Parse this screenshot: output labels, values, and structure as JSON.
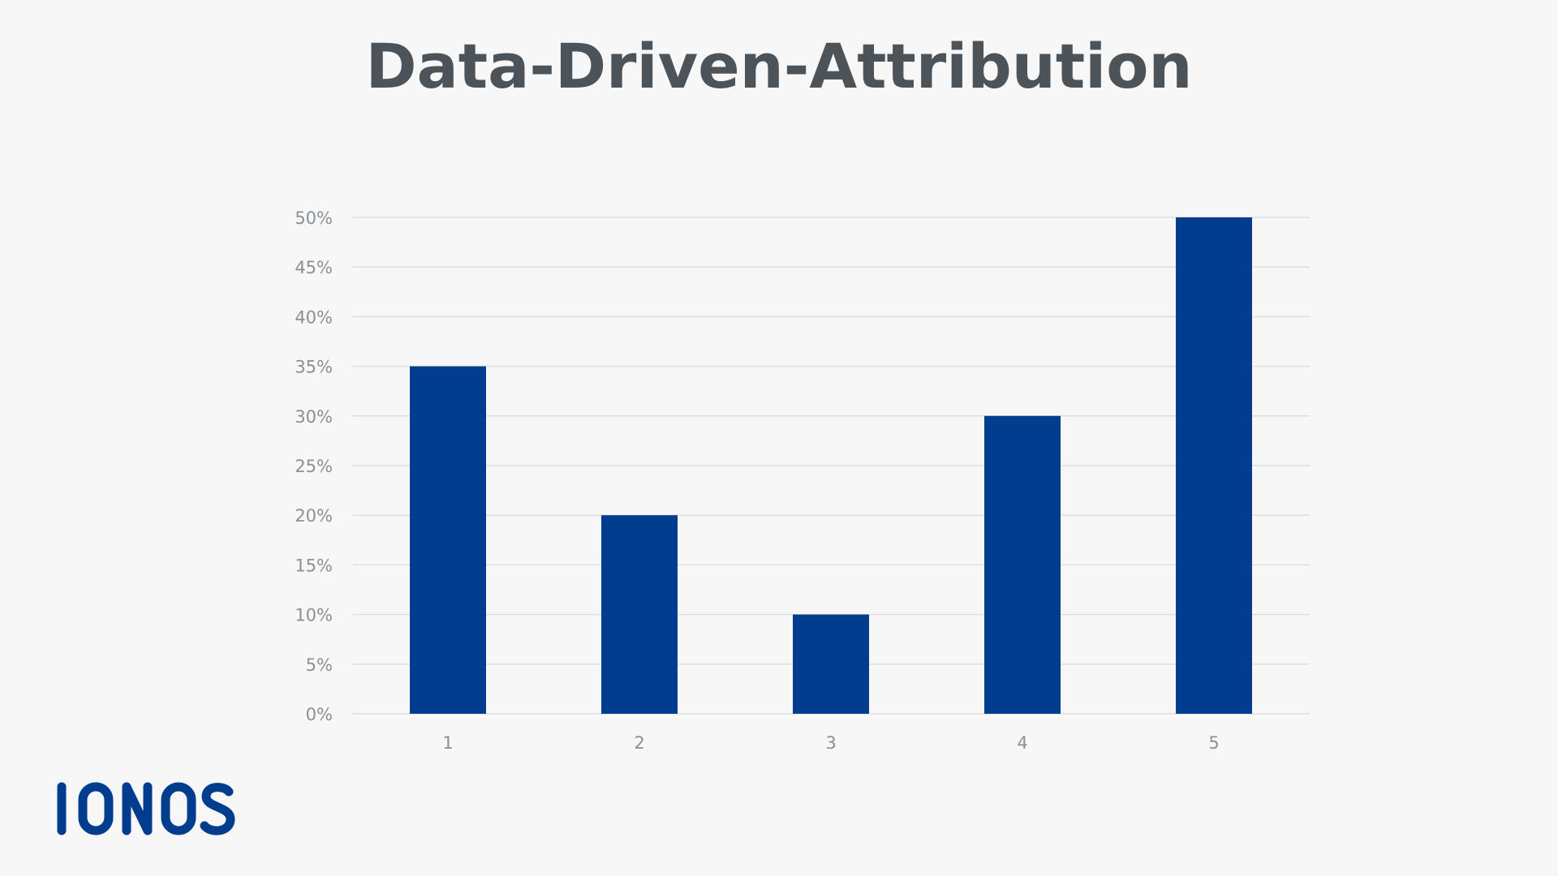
{
  "title": "Data-Driven-Attribution",
  "logo": {
    "text": "IONOS",
    "icon": "ionos-logo",
    "color": "#003d8f"
  },
  "colors": {
    "background": "#f7f7f7",
    "bar": "#003d8f",
    "title": "#4c5459",
    "grid": "#dcdfe2",
    "tick_text": "#8a9096"
  },
  "chart_data": {
    "type": "bar",
    "categories": [
      "1",
      "2",
      "3",
      "4",
      "5"
    ],
    "values": [
      35,
      20,
      10,
      30,
      50
    ],
    "ylim": [
      0,
      50
    ],
    "ytick_step": 5,
    "ytick_labels": [
      "0%",
      "5%",
      "10%",
      "15%",
      "20%",
      "25%",
      "30%",
      "35%",
      "40%",
      "45%",
      "50%"
    ],
    "grid": true,
    "legend": "none"
  }
}
